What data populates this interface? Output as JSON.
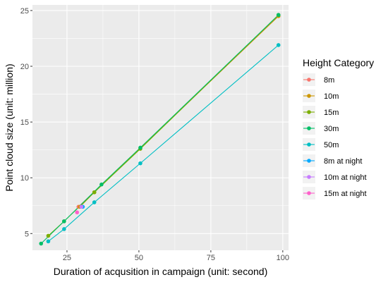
{
  "chart_data": {
    "type": "line",
    "title": "",
    "xlabel": "Duration of acqusition in campaign (unit: second)",
    "ylabel": "Point cloud size (unit: million)",
    "xlim": [
      13,
      102
    ],
    "ylim": [
      3.5,
      25.5
    ],
    "xticks": [
      25,
      50,
      75,
      100
    ],
    "yticks": [
      5,
      10,
      15,
      20,
      25
    ],
    "grid": true,
    "legend": {
      "title": "Height Category",
      "position": "right"
    },
    "series": [
      {
        "name": "8m",
        "color": "#F8766D",
        "x": [
          29,
          98.5
        ],
        "y": [
          7.4,
          24.5
        ]
      },
      {
        "name": "10m",
        "color": "#CD9600",
        "x": [
          29.5,
          34.5,
          98.5
        ],
        "y": [
          7.4,
          8.7,
          24.5
        ]
      },
      {
        "name": "15m",
        "color": "#7CAE00",
        "x": [
          18.5,
          24,
          34.5,
          50.5,
          98.5
        ],
        "y": [
          4.8,
          6.1,
          8.7,
          12.6,
          24.6
        ]
      },
      {
        "name": "30m",
        "color": "#00BE67",
        "x": [
          16,
          24,
          37,
          50.5,
          98.5
        ],
        "y": [
          4.1,
          6.1,
          9.4,
          12.7,
          24.6
        ]
      },
      {
        "name": "50m",
        "color": "#00BFC4",
        "x": [
          18.5,
          24,
          34.5,
          50.5,
          98.5
        ],
        "y": [
          4.3,
          5.4,
          7.8,
          11.3,
          21.9
        ]
      },
      {
        "name": "8m at night",
        "color": "#00A9FF",
        "x": [
          30.5
        ],
        "y": [
          7.4
        ]
      },
      {
        "name": "10m at night",
        "color": "#C77CFF",
        "x": [
          30
        ],
        "y": [
          7.4
        ]
      },
      {
        "name": "15m at night",
        "color": "#FF61CC",
        "x": [
          28.5
        ],
        "y": [
          6.9
        ]
      }
    ]
  }
}
